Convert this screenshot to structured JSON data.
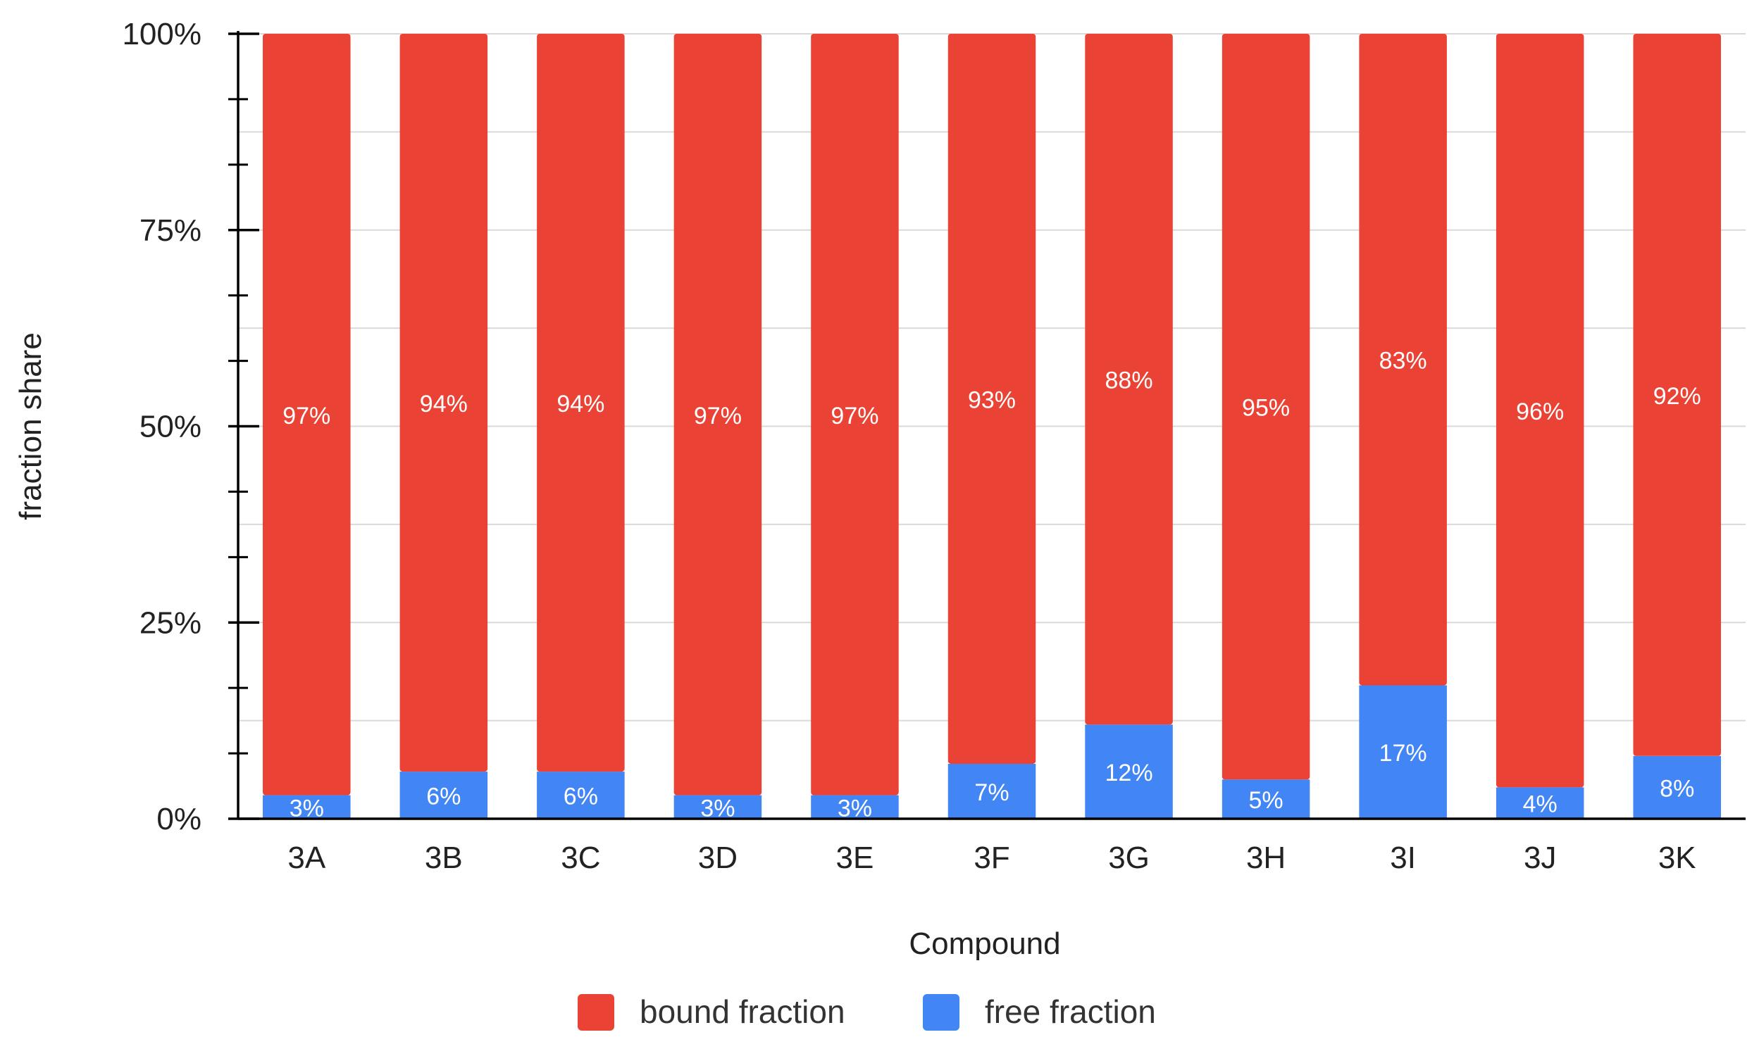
{
  "chart_data": {
    "type": "bar",
    "stacked": true,
    "percent_stacked": true,
    "categories": [
      "3A",
      "3B",
      "3C",
      "3D",
      "3E",
      "3F",
      "3G",
      "3H",
      "3I",
      "3J",
      "3K"
    ],
    "series": [
      {
        "name": "free fraction",
        "color": "#4285F4",
        "values": [
          3,
          6,
          6,
          3,
          3,
          7,
          12,
          5,
          17,
          4,
          8
        ],
        "labels": [
          "3%",
          "6%",
          "6%",
          "3%",
          "3%",
          "7%",
          "12%",
          "5%",
          "17%",
          "4%",
          "8%"
        ]
      },
      {
        "name": "bound fraction",
        "color": "#EA4335",
        "values": [
          97,
          94,
          94,
          97,
          97,
          93,
          88,
          95,
          83,
          96,
          92
        ],
        "labels": [
          "97%",
          "94%",
          "94%",
          "97%",
          "97%",
          "93%",
          "88%",
          "95%",
          "83%",
          "96%",
          "92%"
        ]
      }
    ],
    "xlabel": "Compound",
    "ylabel": "fraction share",
    "ylim": [
      0,
      100
    ],
    "yticks": [
      {
        "value": 0,
        "label": "0%"
      },
      {
        "value": 25,
        "label": "25%"
      },
      {
        "value": 50,
        "label": "50%"
      },
      {
        "value": 75,
        "label": "75%"
      },
      {
        "value": 100,
        "label": "100%"
      }
    ],
    "grid": true,
    "legend": {
      "position": "bottom",
      "entries": [
        {
          "name": "bound fraction",
          "color": "#EA4335"
        },
        {
          "name": "free fraction",
          "color": "#4285F4"
        }
      ]
    }
  }
}
